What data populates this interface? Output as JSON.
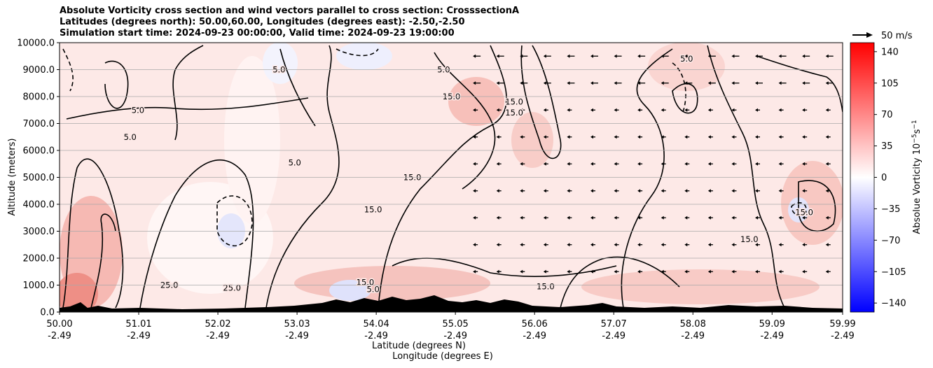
{
  "chart_data": {
    "type": "heatmap",
    "title_lines": [
      "Absolute Vorticity cross section and wind vectors parallel to cross section: CrosssectionA",
      "Latitudes (degrees north): 50.00,60.00, Longitudes (degrees east): -2.50,-2.50",
      "Simulation start time: 2024-09-23 00:00:00, Valid time: 2024-09-23 19:00:00"
    ],
    "xlabel": "Latitude (degrees N)",
    "xlabel2": "Longitude (degrees E)",
    "ylabel": "Altitude (meters)",
    "x_ticks": [
      {
        "lat": "50.00",
        "lon": "-2.49"
      },
      {
        "lat": "51.01",
        "lon": "-2.49"
      },
      {
        "lat": "52.02",
        "lon": "-2.49"
      },
      {
        "lat": "53.03",
        "lon": "-2.49"
      },
      {
        "lat": "54.04",
        "lon": "-2.49"
      },
      {
        "lat": "55.05",
        "lon": "-2.49"
      },
      {
        "lat": "56.06",
        "lon": "-2.49"
      },
      {
        "lat": "57.07",
        "lon": "-2.49"
      },
      {
        "lat": "58.08",
        "lon": "-2.49"
      },
      {
        "lat": "59.09",
        "lon": "-2.49"
      },
      {
        "lat": "59.99",
        "lon": "-2.49"
      }
    ],
    "y_ticks": [
      "0.0",
      "1000.0",
      "2000.0",
      "3000.0",
      "4000.0",
      "5000.0",
      "6000.0",
      "7000.0",
      "8000.0",
      "9000.0",
      "10000.0"
    ],
    "xlim": [
      50.0,
      59.99
    ],
    "ylim": [
      0,
      10000
    ],
    "grid": "horizontal",
    "colorbar": {
      "label": "Absolue Vorticity 10",
      "label_exp": "−5",
      "label_unit": "s",
      "label_unit_exp": "−1",
      "range": [
        -150,
        150
      ],
      "ticks": [
        "140",
        "105",
        "70",
        "35",
        "0",
        "−35",
        "−70",
        "−105",
        "−140"
      ],
      "cmap": "bwr"
    },
    "quiver_key": {
      "label": "50 m/s"
    },
    "contour_labels": [
      {
        "text": "5.0",
        "lat": 50.9,
        "alt": 6500
      },
      {
        "text": "5.0",
        "lat": 51.0,
        "alt": 7500
      },
      {
        "text": "5.0",
        "lat": 53.0,
        "alt": 5550
      },
      {
        "text": "5.0",
        "lat": 52.8,
        "alt": 9000
      },
      {
        "text": "5.0",
        "lat": 54.9,
        "alt": 9000
      },
      {
        "text": "5.0",
        "lat": 58.0,
        "alt": 9400
      },
      {
        "text": "15.0",
        "lat": 54.5,
        "alt": 5000
      },
      {
        "text": "15.0",
        "lat": 54.0,
        "alt": 3800
      },
      {
        "text": "15.0",
        "lat": 55.0,
        "alt": 8000
      },
      {
        "text": "15.0",
        "lat": 55.8,
        "alt": 7800
      },
      {
        "text": "15.0",
        "lat": 55.8,
        "alt": 7400
      },
      {
        "text": "15.0",
        "lat": 53.9,
        "alt": 1100
      },
      {
        "text": "15.0",
        "lat": 56.2,
        "alt": 950
      },
      {
        "text": "15.0",
        "lat": 58.8,
        "alt": 2700
      },
      {
        "text": "15.0",
        "lat": 59.5,
        "alt": 3700
      },
      {
        "text": "25.0",
        "lat": 51.4,
        "alt": 1000
      },
      {
        "text": "25.0",
        "lat": 52.2,
        "alt": 900
      },
      {
        "text": "5.0",
        "lat": 54.0,
        "alt": 850
      }
    ],
    "terrain": "black filled orography along lower boundary, mostly below ~400 m",
    "wind_vectors": "small arrows parallel to cross section, mostly pointing south (leftward) at upper levels"
  }
}
